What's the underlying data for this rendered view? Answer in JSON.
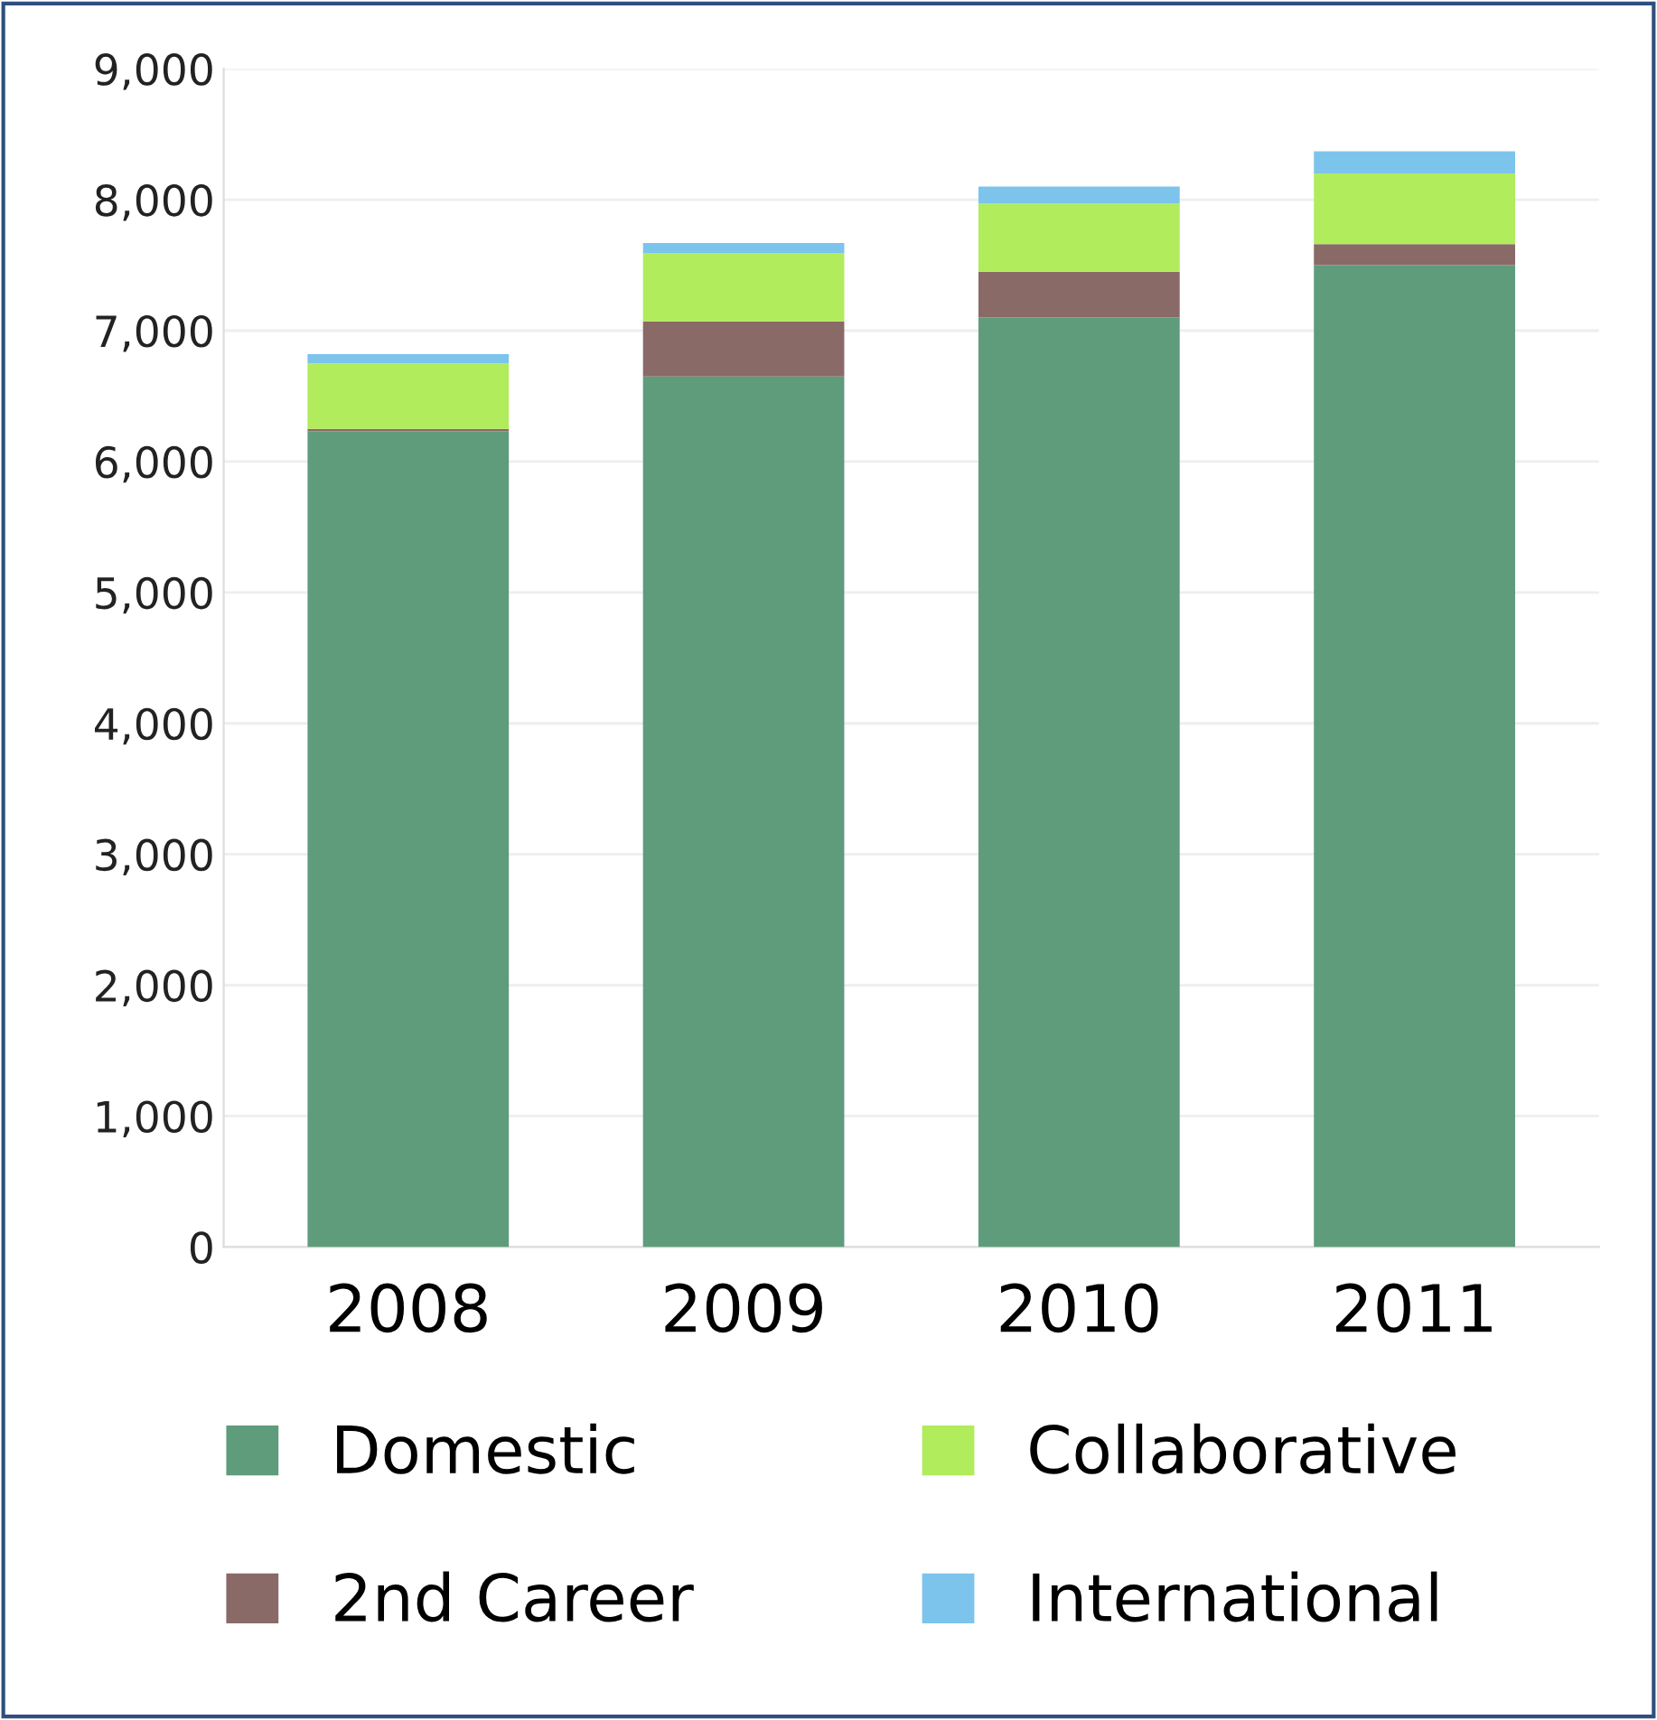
{
  "chart_data": {
    "type": "bar",
    "stacked": true,
    "categories": [
      "2008",
      "2009",
      "2010",
      "2011"
    ],
    "series": [
      {
        "name": "Domestic",
        "color": "#5e9c7c",
        "values": [
          6230,
          6650,
          7100,
          7500
        ]
      },
      {
        "name": "2nd Career",
        "color": "#8a6a66",
        "values": [
          20,
          420,
          350,
          160
        ]
      },
      {
        "name": "Collaborative",
        "color": "#b0ec5c",
        "values": [
          500,
          520,
          520,
          540
        ]
      },
      {
        "name": "International",
        "color": "#7cc4ec",
        "values": [
          70,
          80,
          130,
          170
        ]
      }
    ],
    "ylim": [
      0,
      9000
    ],
    "yticks": [
      {
        "value": 0,
        "label": "0"
      },
      {
        "value": 1000,
        "label": "1,000"
      },
      {
        "value": 2000,
        "label": "2,000"
      },
      {
        "value": 3000,
        "label": "3,000"
      },
      {
        "value": 4000,
        "label": "4,000"
      },
      {
        "value": 5000,
        "label": "5,000"
      },
      {
        "value": 6000,
        "label": "6,000"
      },
      {
        "value": 7000,
        "label": "7,000"
      },
      {
        "value": 8000,
        "label": "8,000"
      },
      {
        "value": 9000,
        "label": "9,000"
      }
    ],
    "grid": "y",
    "legend": "bottom"
  }
}
